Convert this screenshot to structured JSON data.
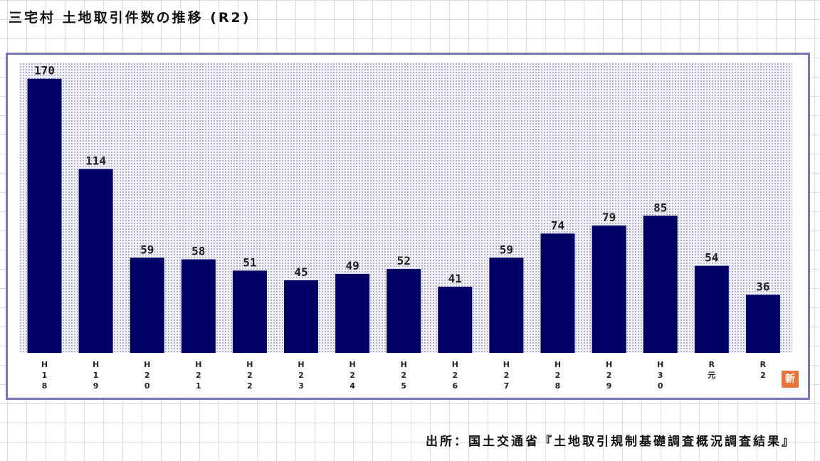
{
  "chart_data": {
    "type": "bar",
    "title": "三宅村 土地取引件数の推移 (R2)",
    "categories": [
      "H18",
      "H19",
      "H20",
      "H21",
      "H22",
      "H23",
      "H24",
      "H25",
      "H26",
      "H27",
      "H28",
      "H29",
      "H30",
      "R元",
      "R2"
    ],
    "tick_labels": [
      [
        "H",
        "1",
        "8"
      ],
      [
        "H",
        "1",
        "9"
      ],
      [
        "H",
        "2",
        "0"
      ],
      [
        "H",
        "2",
        "1"
      ],
      [
        "H",
        "2",
        "2"
      ],
      [
        "H",
        "2",
        "3"
      ],
      [
        "H",
        "2",
        "4"
      ],
      [
        "H",
        "2",
        "5"
      ],
      [
        "H",
        "2",
        "6"
      ],
      [
        "H",
        "2",
        "7"
      ],
      [
        "H",
        "2",
        "8"
      ],
      [
        "H",
        "2",
        "9"
      ],
      [
        "H",
        "3",
        "0"
      ],
      [
        "R",
        "元"
      ],
      [
        "R",
        "2"
      ]
    ],
    "values": [
      170,
      114,
      59,
      58,
      51,
      45,
      49,
      52,
      41,
      59,
      74,
      79,
      85,
      54,
      36
    ],
    "data_labels": [
      "170",
      "114",
      "59",
      "58",
      "51",
      "45",
      "49",
      "52",
      "41",
      "59",
      "74",
      "79",
      "85",
      "54",
      "36"
    ],
    "ylim": [
      0,
      180
    ],
    "xlabel": "",
    "ylabel": "",
    "grid": false,
    "legend": "none",
    "bar_color": "#000066",
    "source": "出所：国土交通省『土地取引規制基礎調査概況調査結果』",
    "badge_label": "新"
  }
}
